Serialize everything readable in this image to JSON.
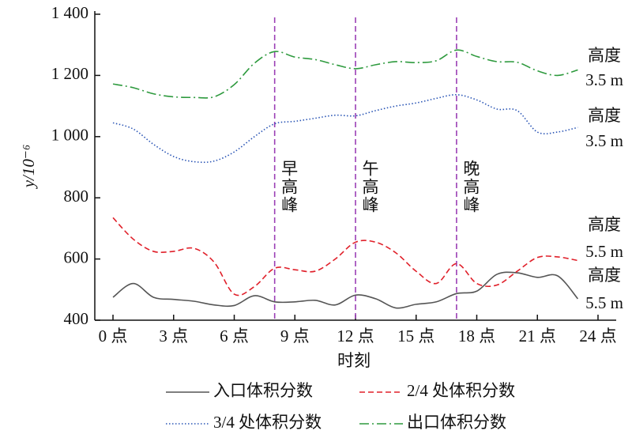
{
  "chart_data": {
    "type": "line",
    "xlabel": "时刻",
    "ylabel": "y/10⁻⁶",
    "x": [
      0,
      1,
      2,
      3,
      4,
      5,
      6,
      7,
      8,
      9,
      10,
      11,
      12,
      13,
      14,
      15,
      16,
      17,
      18,
      19,
      20,
      21,
      22,
      23
    ],
    "series": [
      {
        "name": "入口体积分数",
        "color": "#555555",
        "dash": "solid",
        "values": [
          475,
          520,
          475,
          468,
          462,
          450,
          448,
          480,
          460,
          460,
          465,
          450,
          482,
          470,
          440,
          452,
          460,
          487,
          495,
          550,
          555,
          540,
          545,
          470
        ]
      },
      {
        "name": "2/4 处体积分数",
        "color": "#e0202a",
        "dash": "dashed",
        "values": [
          735,
          665,
          625,
          625,
          635,
          590,
          485,
          510,
          570,
          565,
          560,
          600,
          655,
          655,
          620,
          560,
          520,
          585,
          520,
          515,
          560,
          605,
          607,
          595
        ]
      },
      {
        "name": "3/4 处体积分数",
        "color": "#2a55b5",
        "dash": "dotted",
        "values": [
          1045,
          1025,
          975,
          935,
          918,
          920,
          950,
          1000,
          1042,
          1050,
          1060,
          1070,
          1068,
          1085,
          1100,
          1110,
          1125,
          1137,
          1120,
          1090,
          1085,
          1015,
          1015,
          1030
        ]
      },
      {
        "name": "出口体积分数",
        "color": "#2e9a3e",
        "dash": "dashdot",
        "values": [
          1172,
          1160,
          1140,
          1130,
          1128,
          1130,
          1170,
          1240,
          1278,
          1260,
          1252,
          1235,
          1222,
          1235,
          1245,
          1242,
          1248,
          1283,
          1262,
          1245,
          1243,
          1215,
          1200,
          1218
        ]
      }
    ],
    "xlim": [
      -0.9,
      24.9
    ],
    "xticks": [
      {
        "value": 0,
        "label": "0 点"
      },
      {
        "value": 3,
        "label": "3 点"
      },
      {
        "value": 6,
        "label": "6 点"
      },
      {
        "value": 9,
        "label": "9 点"
      },
      {
        "value": 12,
        "label": "12 点"
      },
      {
        "value": 15,
        "label": "15 点"
      },
      {
        "value": 18,
        "label": "18 点"
      },
      {
        "value": 21,
        "label": "21 点"
      },
      {
        "value": 24,
        "label": "24 点"
      }
    ],
    "ylim": [
      400,
      1400
    ],
    "yticks": [
      400,
      600,
      800,
      {
        "value": 1000,
        "label": "1 000"
      },
      {
        "value": 1200,
        "label": "1 200"
      },
      {
        "value": 1400,
        "label": "1 400"
      }
    ],
    "peaks": [
      {
        "x": 8,
        "label": "早高峰"
      },
      {
        "x": 12,
        "label": "午高峰"
      },
      {
        "x": 17,
        "label": "晚高峰"
      }
    ],
    "peak_color": "#9b3fb5",
    "annotations": [
      {
        "lines": [
          "高度",
          "3.5 m"
        ]
      },
      {
        "lines": [
          "高度",
          "3.5 m"
        ]
      },
      {
        "lines": [
          "高度",
          "5.5 m"
        ]
      },
      {
        "lines": [
          "高度",
          "5.5 m"
        ]
      }
    ]
  }
}
